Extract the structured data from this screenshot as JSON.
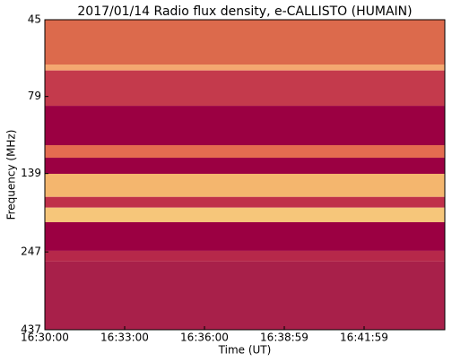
{
  "chart_data": {
    "type": "spectrogram",
    "title": "2017/01/14  Radio flux density, e-CALLISTO (HUMAIN)",
    "xlabel": "Time (UT)",
    "ylabel": "Frequency (MHz)",
    "xticks": [
      "16:30:00",
      "16:33:00",
      "16:36:00",
      "16:38:59",
      "16:41:59"
    ],
    "ylim": [
      45,
      437
    ],
    "yticks": [
      45,
      79,
      139,
      247,
      437
    ],
    "ylog": true,
    "yinverted": true,
    "bands": [
      {
        "from": 45,
        "to": 62.5,
        "color": "#dc6a4c"
      },
      {
        "from": 62.5,
        "to": 65.3,
        "color": "#f4a870"
      },
      {
        "from": 65.3,
        "to": 84.6,
        "color": "#c43a4c"
      },
      {
        "from": 84.6,
        "to": 112.9,
        "color": "#9b0042"
      },
      {
        "from": 112.9,
        "to": 123.8,
        "color": "#e46c50"
      },
      {
        "from": 123.8,
        "to": 139.3,
        "color": "#9b0042"
      },
      {
        "from": 139.3,
        "to": 165,
        "color": "#f4b66e"
      },
      {
        "from": 165,
        "to": 178.5,
        "color": "#c0304a"
      },
      {
        "from": 178.5,
        "to": 198.6,
        "color": "#f6c67a"
      },
      {
        "from": 198.6,
        "to": 245,
        "color": "#9b0042"
      },
      {
        "from": 245,
        "to": 265,
        "color": "#b6284a"
      },
      {
        "from": 265,
        "to": 437,
        "color": "#a8204a"
      }
    ]
  }
}
